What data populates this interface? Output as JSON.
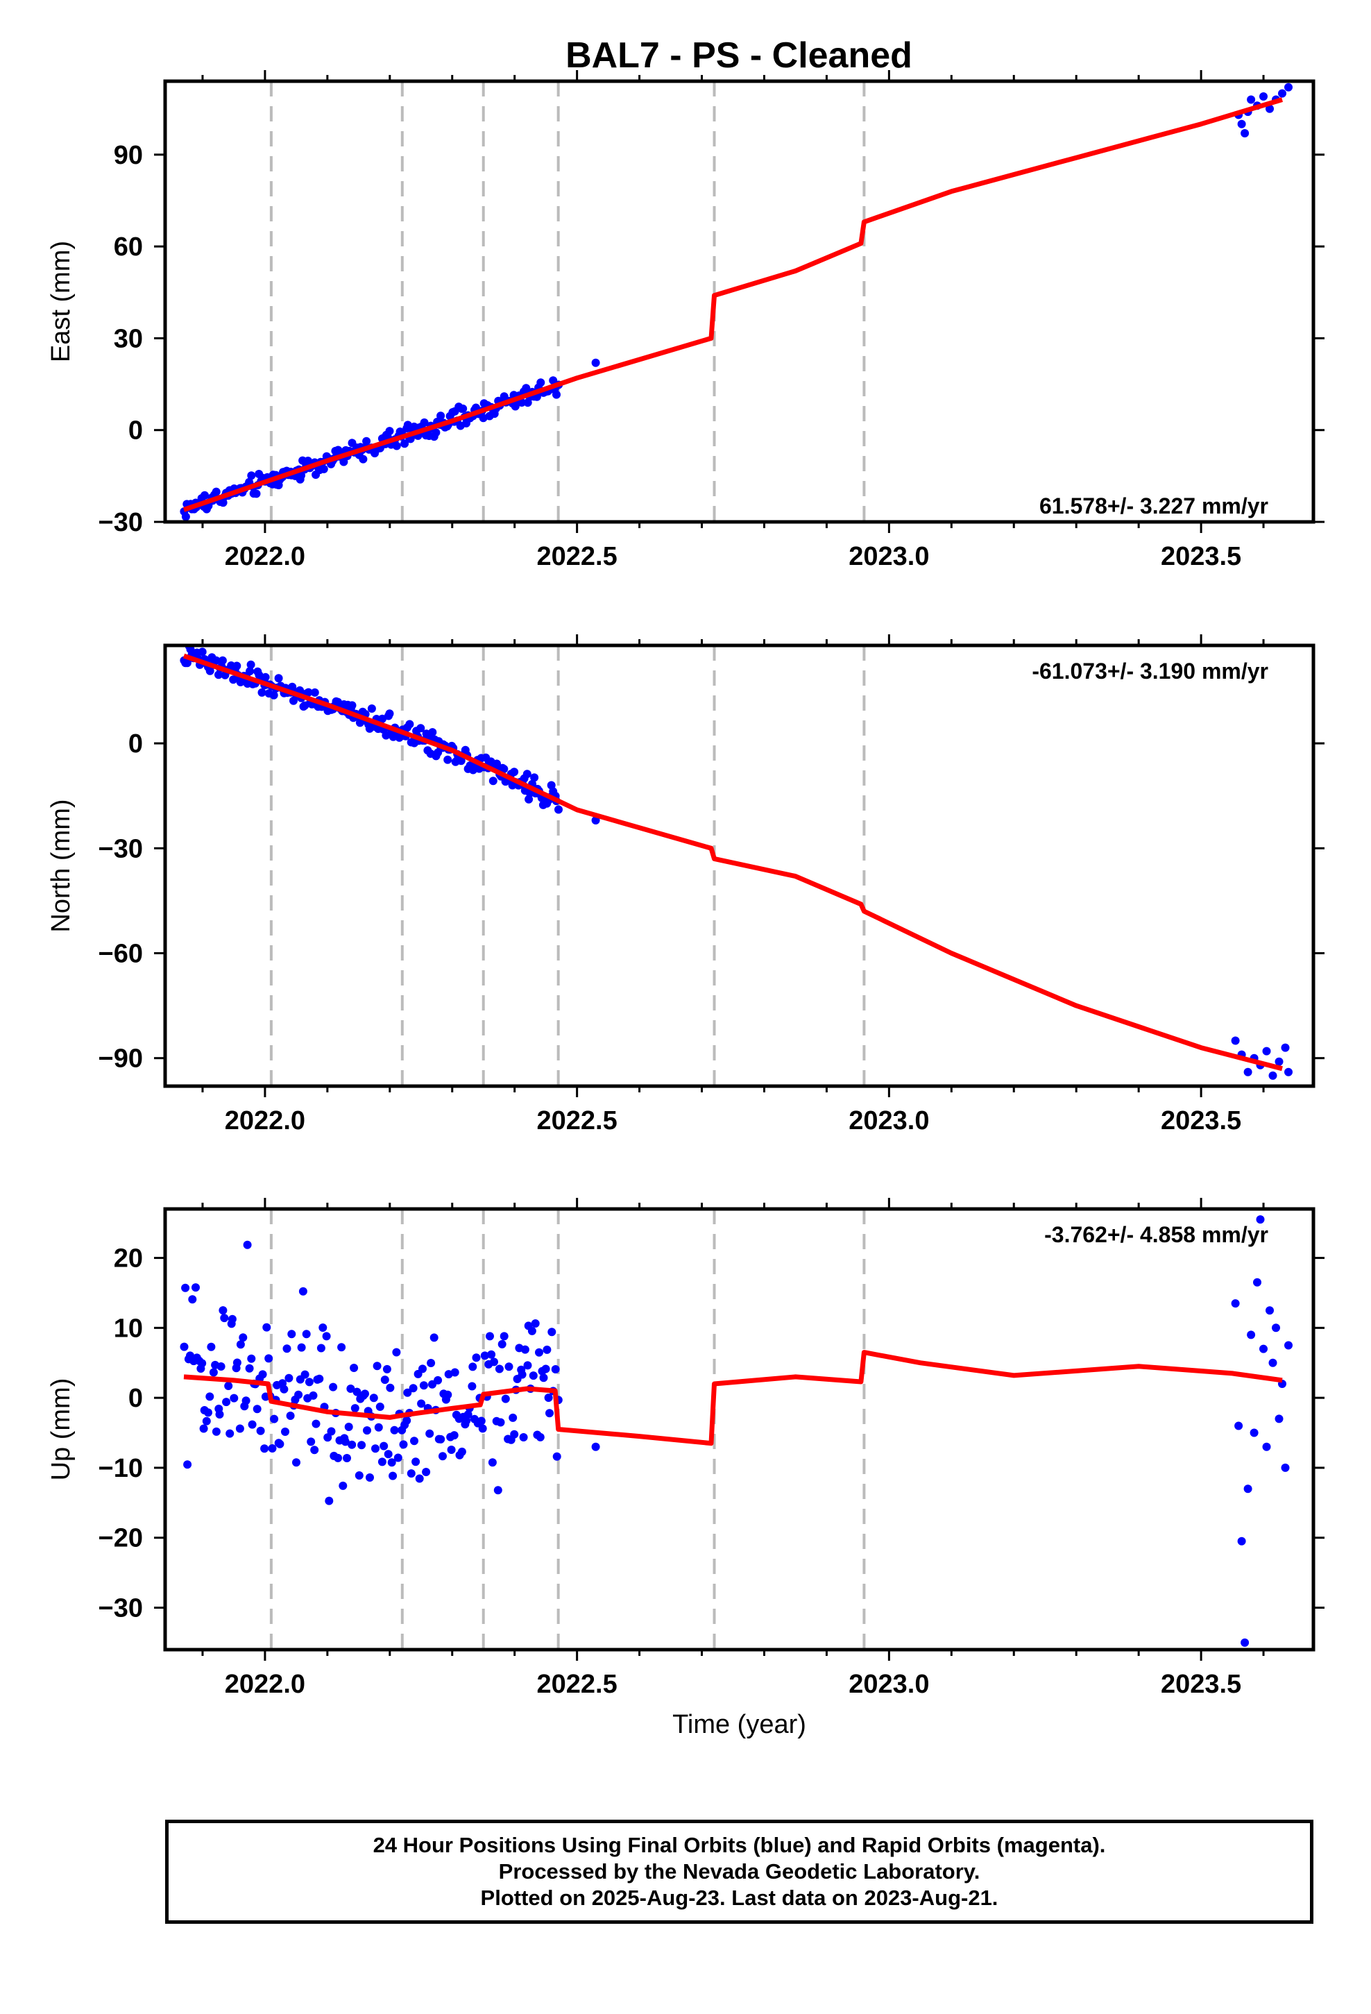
{
  "title": "BAL7  - PS - Cleaned",
  "colors": {
    "data": "#0000ff",
    "model": "#ff0000",
    "breaks": "#bbbbbb",
    "axes": "#000000"
  },
  "chart_data": [
    {
      "type": "scatter",
      "component": "east",
      "ylabel": "East (mm)",
      "xlabel": "",
      "xlim": [
        2021.84,
        2023.68
      ],
      "ylim": [
        -30,
        114
      ],
      "xticks": [
        2022.0,
        2022.5,
        2023.0,
        2023.5
      ],
      "xtick_labels": [
        "2022.0",
        "2022.5",
        "2023.0",
        "2023.5"
      ],
      "yticks": [
        -30,
        0,
        30,
        60,
        90
      ],
      "ytick_labels": [
        "−30",
        "0",
        "30",
        "60",
        "90"
      ],
      "rate_label": "61.578+/- 3.227 mm/yr",
      "rate_position": "bottom-right",
      "grid": false,
      "breaks": [
        2022.01,
        2022.22,
        2022.35,
        2022.47,
        2022.72,
        2022.96
      ],
      "model": {
        "x": [
          2021.87,
          2022.1,
          2022.3,
          2022.5,
          2022.715,
          2022.72,
          2022.85,
          2022.955,
          2022.96,
          2023.1,
          2023.3,
          2023.5,
          2023.63
        ],
        "y": [
          -26,
          -10,
          3,
          17,
          30,
          44,
          52,
          61,
          68,
          78,
          89,
          100,
          108
        ]
      },
      "points_range": [
        2021.87,
        2022.47
      ],
      "points_extra": [
        {
          "x": 2022.53,
          "y": 22
        },
        {
          "x": 2023.56,
          "y": 103
        },
        {
          "x": 2023.565,
          "y": 100
        },
        {
          "x": 2023.57,
          "y": 97
        },
        {
          "x": 2023.575,
          "y": 104
        },
        {
          "x": 2023.58,
          "y": 108
        },
        {
          "x": 2023.59,
          "y": 106
        },
        {
          "x": 2023.6,
          "y": 109
        },
        {
          "x": 2023.61,
          "y": 105
        },
        {
          "x": 2023.62,
          "y": 108
        },
        {
          "x": 2023.63,
          "y": 110
        },
        {
          "x": 2023.64,
          "y": 112
        }
      ]
    },
    {
      "type": "scatter",
      "component": "north",
      "ylabel": "North (mm)",
      "xlabel": "",
      "xlim": [
        2021.84,
        2023.68
      ],
      "ylim": [
        -98,
        28
      ],
      "xticks": [
        2022.0,
        2022.5,
        2023.0,
        2023.5
      ],
      "xtick_labels": [
        "2022.0",
        "2022.5",
        "2023.0",
        "2023.5"
      ],
      "yticks": [
        -90,
        -60,
        -30,
        0
      ],
      "ytick_labels": [
        "−90",
        "−60",
        "−30",
        "0"
      ],
      "rate_label": "-61.073+/- 3.190 mm/yr",
      "rate_position": "top-right",
      "grid": false,
      "breaks": [
        2022.01,
        2022.22,
        2022.35,
        2022.47,
        2022.72,
        2022.96
      ],
      "model": {
        "x": [
          2021.87,
          2022.1,
          2022.3,
          2022.5,
          2022.715,
          2022.72,
          2022.85,
          2022.955,
          2022.96,
          2023.1,
          2023.3,
          2023.5,
          2023.63
        ],
        "y": [
          25,
          11,
          -2,
          -19,
          -30,
          -33,
          -38,
          -46,
          -48,
          -60,
          -75,
          -87,
          -93
        ]
      },
      "points_range": [
        2021.87,
        2022.47
      ],
      "points_extra": [
        {
          "x": 2022.53,
          "y": -22
        },
        {
          "x": 2023.555,
          "y": -85
        },
        {
          "x": 2023.565,
          "y": -89
        },
        {
          "x": 2023.575,
          "y": -94
        },
        {
          "x": 2023.585,
          "y": -90
        },
        {
          "x": 2023.595,
          "y": -92
        },
        {
          "x": 2023.605,
          "y": -88
        },
        {
          "x": 2023.615,
          "y": -95
        },
        {
          "x": 2023.625,
          "y": -91
        },
        {
          "x": 2023.635,
          "y": -87
        },
        {
          "x": 2023.64,
          "y": -94
        }
      ]
    },
    {
      "type": "scatter",
      "component": "up",
      "ylabel": "Up (mm)",
      "xlabel": "Time (year)",
      "xlim": [
        2021.84,
        2023.68
      ],
      "ylim": [
        -36,
        27
      ],
      "xticks": [
        2022.0,
        2022.5,
        2023.0,
        2023.5
      ],
      "xtick_labels": [
        "2022.0",
        "2022.5",
        "2023.0",
        "2023.5"
      ],
      "yticks": [
        -30,
        -20,
        -10,
        0,
        10,
        20
      ],
      "ytick_labels": [
        "−30",
        "−20",
        "−10",
        "0",
        "10",
        "20"
      ],
      "rate_label": "-3.762+/- 4.858 mm/yr",
      "rate_position": "top-right",
      "grid": false,
      "breaks": [
        2022.01,
        2022.22,
        2022.35,
        2022.47,
        2022.72,
        2022.96
      ],
      "model": {
        "x": [
          2021.87,
          2021.95,
          2022.005,
          2022.01,
          2022.1,
          2022.2,
          2022.22,
          2022.3,
          2022.345,
          2022.35,
          2022.42,
          2022.465,
          2022.47,
          2022.6,
          2022.715,
          2022.72,
          2022.85,
          2022.955,
          2022.96,
          2023.05,
          2023.2,
          2023.4,
          2023.55,
          2023.63
        ],
        "y": [
          3,
          2.5,
          2,
          -0.5,
          -2,
          -2.8,
          -2.5,
          -1.5,
          -1,
          0.5,
          1.3,
          1,
          -4.5,
          -5.5,
          -6.5,
          2,
          3,
          2.3,
          6.5,
          5,
          3.2,
          4.5,
          3.5,
          2.5
        ]
      },
      "points_range": [
        2021.87,
        2022.47
      ],
      "points_extra": [
        {
          "x": 2022.53,
          "y": -7
        },
        {
          "x": 2023.555,
          "y": 13.5
        },
        {
          "x": 2023.56,
          "y": -4
        },
        {
          "x": 2023.565,
          "y": -20.5
        },
        {
          "x": 2023.57,
          "y": -35
        },
        {
          "x": 2023.575,
          "y": -13
        },
        {
          "x": 2023.58,
          "y": 9
        },
        {
          "x": 2023.585,
          "y": -5
        },
        {
          "x": 2023.59,
          "y": 16.5
        },
        {
          "x": 2023.595,
          "y": 25.5
        },
        {
          "x": 2023.6,
          "y": 7
        },
        {
          "x": 2023.605,
          "y": -7
        },
        {
          "x": 2023.61,
          "y": 12.5
        },
        {
          "x": 2023.615,
          "y": 5
        },
        {
          "x": 2023.62,
          "y": 10
        },
        {
          "x": 2023.625,
          "y": -3
        },
        {
          "x": 2023.63,
          "y": 2
        },
        {
          "x": 2023.635,
          "y": -10
        },
        {
          "x": 2023.64,
          "y": 7.5
        }
      ]
    }
  ],
  "footer": {
    "line1": "24 Hour Positions Using Final Orbits (blue) and Rapid Orbits (magenta).",
    "line2": "Processed by the Nevada Geodetic Laboratory.",
    "line3": "Plotted on 2025-Aug-23. Last data on 2023-Aug-21."
  }
}
